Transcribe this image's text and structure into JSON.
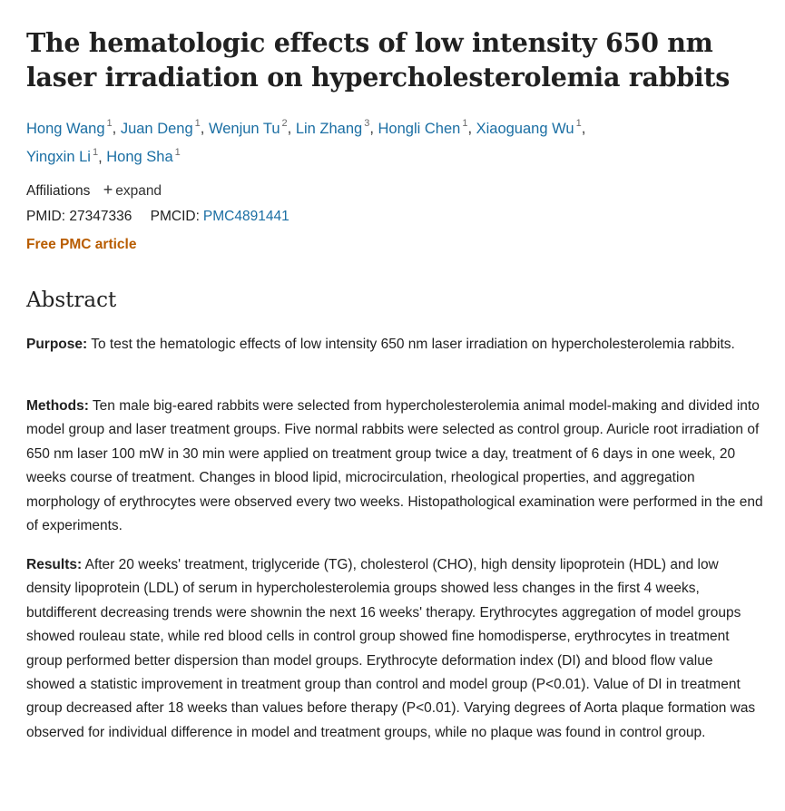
{
  "article": {
    "title": "The hematologic effects of low intensity 650 nm laser irradiation on hypercholesterolemia rabbits",
    "authors": [
      {
        "name": "Hong Wang",
        "aff": "1"
      },
      {
        "name": "Juan Deng",
        "aff": "1"
      },
      {
        "name": "Wenjun Tu",
        "aff": "2"
      },
      {
        "name": "Lin Zhang",
        "aff": "3"
      },
      {
        "name": "Hongli Chen",
        "aff": "1"
      },
      {
        "name": "Xiaoguang Wu",
        "aff": "1"
      },
      {
        "name": "Yingxin Li",
        "aff": "1"
      },
      {
        "name": "Hong Sha",
        "aff": "1"
      }
    ],
    "affiliations_label": "Affiliations",
    "expand_label": "expand",
    "pmid_label": "PMID:",
    "pmid": "27347336",
    "pmcid_label": "PMCID:",
    "pmcid": "PMC4891441",
    "free_pmc": "Free PMC article"
  },
  "abstract": {
    "heading": "Abstract",
    "purpose_label": "Purpose:",
    "purpose": "To test the hematologic effects of low intensity 650 nm laser irradiation on hypercholesterolemia rabbits.",
    "methods_label": "Methods:",
    "methods": "Ten male big-eared rabbits were selected from hypercholesterolemia animal model-making and divided into model group and laser treatment groups. Five normal rabbits were selected as control group. Auricle root irradiation of 650 nm laser 100 mW in 30 min were applied on treatment group twice a day, treatment of 6 days in one week, 20 weeks course of treatment. Changes in blood lipid, microcirculation, rheological properties, and aggregation morphology of erythrocytes were observed every two weeks. Histopathological examination were performed in the end of experiments.",
    "results_label": "Results:",
    "results": "After 20 weeks' treatment, triglyceride (TG), cholesterol (CHO), high density lipoprotein (HDL) and low density lipoprotein (LDL) of serum in hypercholesterolemia groups showed less changes in the first 4 weeks, butdifferent decreasing trends were shownin the next 16 weeks' therapy. Erythrocytes aggregation of model groups showed rouleau state, while red blood cells in control group showed fine homodisperse, erythrocytes in treatment group performed better dispersion than model groups. Erythrocyte deformation index (DI) and blood flow value showed a statistic improvement in treatment group than control and model group (P<0.01). Value of DI in treatment group decreased after 18 weeks than values before therapy (P<0.01). Varying degrees of Aorta plaque formation was observed for individual difference in model and treatment groups, while no plaque was found in control group."
  }
}
